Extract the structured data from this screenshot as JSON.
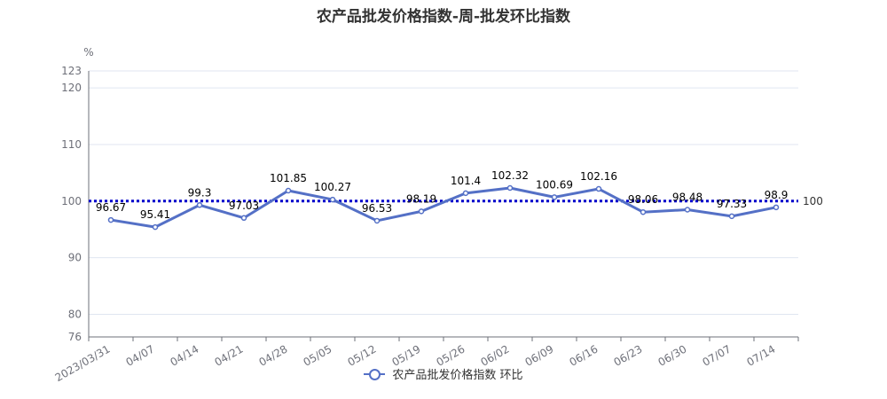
{
  "chart_data": {
    "type": "line",
    "title": "农产品批发价格指数-周-批发环比指数",
    "ylabel": "%",
    "ylim": [
      76,
      123
    ],
    "yticks": [
      76,
      80,
      90,
      100,
      110,
      120,
      123
    ],
    "categories": [
      "2023/03/31",
      "04/07",
      "04/14",
      "04/21",
      "04/28",
      "05/05",
      "05/12",
      "05/19",
      "05/26",
      "06/02",
      "06/09",
      "06/16",
      "06/23",
      "06/30",
      "07/07",
      "07/14"
    ],
    "series": [
      {
        "name": "农产品批发价格指数 环比",
        "values": [
          96.67,
          95.41,
          99.3,
          97.03,
          101.85,
          100.27,
          96.53,
          98.19,
          101.4,
          102.32,
          100.69,
          102.16,
          98.06,
          98.48,
          97.33,
          98.9
        ],
        "color": "#5470c6"
      }
    ],
    "reference_line": {
      "value": 100,
      "label": "100",
      "color": "#0000cc"
    },
    "grid": true,
    "legend_position": "bottom"
  }
}
